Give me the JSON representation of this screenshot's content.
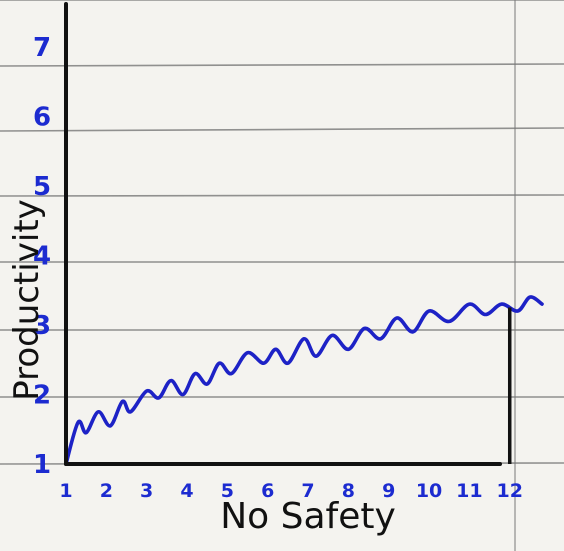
{
  "chart_data": {
    "type": "line",
    "title": "",
    "xlabel": "No Safety",
    "ylabel": "Productivity",
    "x_ticks": [
      "1",
      "2",
      "3",
      "4",
      "5",
      "6",
      "7",
      "8",
      "9",
      "10",
      "11",
      "12"
    ],
    "y_ticks": [
      "1",
      "2",
      "3",
      "4",
      "5",
      "6",
      "7"
    ],
    "xlim": [
      1,
      12.8
    ],
    "ylim": [
      1,
      7.5
    ],
    "grid": true,
    "marked_x": 12,
    "series": [
      {
        "color": "#1d22c6",
        "points": [
          [
            1.0,
            1.0
          ],
          [
            1.3,
            1.6
          ],
          [
            1.5,
            1.45
          ],
          [
            1.8,
            1.75
          ],
          [
            2.1,
            1.55
          ],
          [
            2.4,
            1.9
          ],
          [
            2.6,
            1.75
          ],
          [
            3.0,
            2.05
          ],
          [
            3.3,
            1.95
          ],
          [
            3.6,
            2.2
          ],
          [
            3.9,
            2.0
          ],
          [
            4.2,
            2.3
          ],
          [
            4.5,
            2.15
          ],
          [
            4.8,
            2.45
          ],
          [
            5.1,
            2.3
          ],
          [
            5.5,
            2.6
          ],
          [
            5.9,
            2.45
          ],
          [
            6.2,
            2.65
          ],
          [
            6.5,
            2.45
          ],
          [
            6.9,
            2.8
          ],
          [
            7.2,
            2.55
          ],
          [
            7.6,
            2.85
          ],
          [
            8.0,
            2.65
          ],
          [
            8.4,
            2.95
          ],
          [
            8.8,
            2.8
          ],
          [
            9.2,
            3.1
          ],
          [
            9.6,
            2.9
          ],
          [
            10.0,
            3.2
          ],
          [
            10.5,
            3.05
          ],
          [
            11.0,
            3.3
          ],
          [
            11.4,
            3.15
          ],
          [
            11.8,
            3.3
          ],
          [
            12.2,
            3.2
          ],
          [
            12.5,
            3.4
          ],
          [
            12.8,
            3.3
          ]
        ]
      }
    ]
  }
}
